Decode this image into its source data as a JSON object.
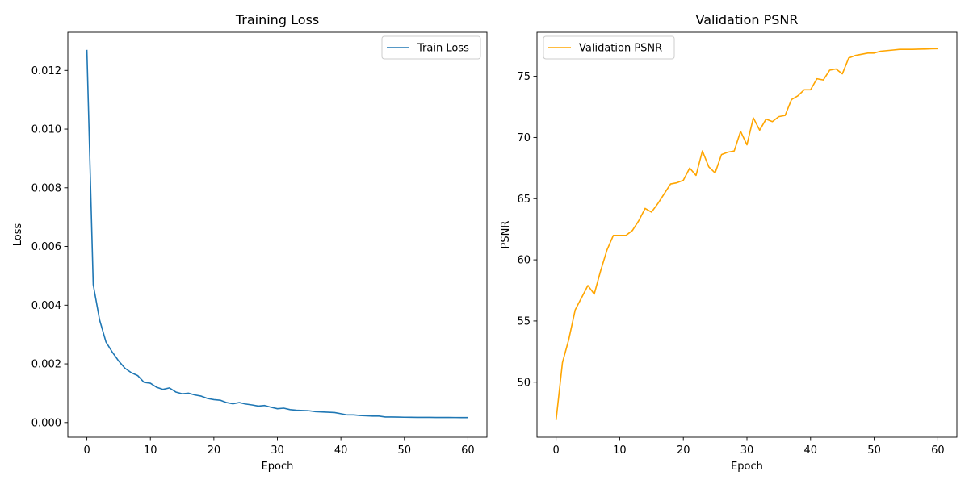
{
  "chart_data": [
    {
      "type": "line",
      "title": "Training Loss",
      "xlabel": "Epoch",
      "ylabel": "Loss",
      "xlim": [
        -3,
        63
      ],
      "ylim": [
        -0.0005,
        0.0133
      ],
      "xticks": [
        0,
        10,
        20,
        30,
        40,
        50,
        60
      ],
      "xtick_labels": [
        "0",
        "10",
        "20",
        "30",
        "40",
        "50",
        "60"
      ],
      "yticks": [
        0.0,
        0.002,
        0.004,
        0.006,
        0.008,
        0.01,
        0.012
      ],
      "ytick_labels": [
        "0.000",
        "0.002",
        "0.004",
        "0.006",
        "0.008",
        "0.010",
        "0.012"
      ],
      "grid": false,
      "legend": "top-right",
      "series": [
        {
          "name": "Train Loss",
          "color": "#1f77b4",
          "x": [
            0,
            1,
            2,
            3,
            4,
            5,
            6,
            7,
            8,
            9,
            10,
            11,
            12,
            13,
            14,
            15,
            16,
            17,
            18,
            19,
            20,
            21,
            22,
            23,
            24,
            25,
            26,
            27,
            28,
            29,
            30,
            31,
            32,
            33,
            34,
            35,
            36,
            37,
            38,
            39,
            40,
            41,
            42,
            43,
            44,
            45,
            46,
            47,
            48,
            49,
            50,
            51,
            52,
            53,
            54,
            55,
            56,
            57,
            58,
            59,
            60
          ],
          "values": [
            0.0127,
            0.0047,
            0.0035,
            0.00275,
            0.0024,
            0.0021,
            0.00185,
            0.0017,
            0.0016,
            0.00137,
            0.00134,
            0.0012,
            0.00113,
            0.00118,
            0.00104,
            0.00098,
            0.001,
            0.00094,
            0.0009,
            0.00082,
            0.00078,
            0.00076,
            0.00068,
            0.00064,
            0.00068,
            0.00063,
            0.0006,
            0.00056,
            0.00058,
            0.00052,
            0.00047,
            0.00049,
            0.00044,
            0.00042,
            0.00041,
            0.0004,
            0.00037,
            0.00036,
            0.00035,
            0.00034,
            0.0003,
            0.00026,
            0.00026,
            0.00024,
            0.00023,
            0.00022,
            0.00022,
            0.00019,
            0.00019,
            0.000185,
            0.00018,
            0.000178,
            0.000176,
            0.000175,
            0.000174,
            0.000173,
            0.000172,
            0.000171,
            0.00017,
            0.000169,
            0.000168
          ]
        }
      ]
    },
    {
      "type": "line",
      "title": "Validation PSNR",
      "xlabel": "Epoch",
      "ylabel": "PSNR",
      "xlim": [
        -3,
        63
      ],
      "ylim": [
        45.5,
        78.6
      ],
      "xticks": [
        0,
        10,
        20,
        30,
        40,
        50,
        60
      ],
      "xtick_labels": [
        "0",
        "10",
        "20",
        "30",
        "40",
        "50",
        "60"
      ],
      "yticks": [
        50,
        55,
        60,
        65,
        70,
        75
      ],
      "ytick_labels": [
        "50",
        "55",
        "60",
        "65",
        "70",
        "75"
      ],
      "grid": false,
      "legend": "top-left",
      "series": [
        {
          "name": "Validation PSNR",
          "color": "#ffa500",
          "x": [
            0,
            1,
            2,
            3,
            4,
            5,
            6,
            7,
            8,
            9,
            10,
            11,
            12,
            13,
            14,
            15,
            16,
            17,
            18,
            19,
            20,
            21,
            22,
            23,
            24,
            25,
            26,
            27,
            28,
            29,
            30,
            31,
            32,
            33,
            34,
            35,
            36,
            37,
            38,
            39,
            40,
            41,
            42,
            43,
            44,
            45,
            46,
            47,
            48,
            49,
            50,
            51,
            52,
            53,
            54,
            55,
            56,
            57,
            58,
            59,
            60
          ],
          "values": [
            46.9,
            51.6,
            53.5,
            55.9,
            56.9,
            57.9,
            57.2,
            59.1,
            60.8,
            62.0,
            62.0,
            62.0,
            62.4,
            63.2,
            64.2,
            63.9,
            64.6,
            65.4,
            66.2,
            66.3,
            66.5,
            67.5,
            66.9,
            68.9,
            67.6,
            67.1,
            68.6,
            68.8,
            68.9,
            70.5,
            69.4,
            71.6,
            70.6,
            71.5,
            71.3,
            71.7,
            71.8,
            73.1,
            73.4,
            73.9,
            73.9,
            74.8,
            74.7,
            75.5,
            75.6,
            75.2,
            76.5,
            76.7,
            76.8,
            76.9,
            76.9,
            77.05,
            77.1,
            77.15,
            77.2,
            77.2,
            77.2,
            77.22,
            77.23,
            77.25,
            77.26
          ]
        }
      ]
    }
  ]
}
